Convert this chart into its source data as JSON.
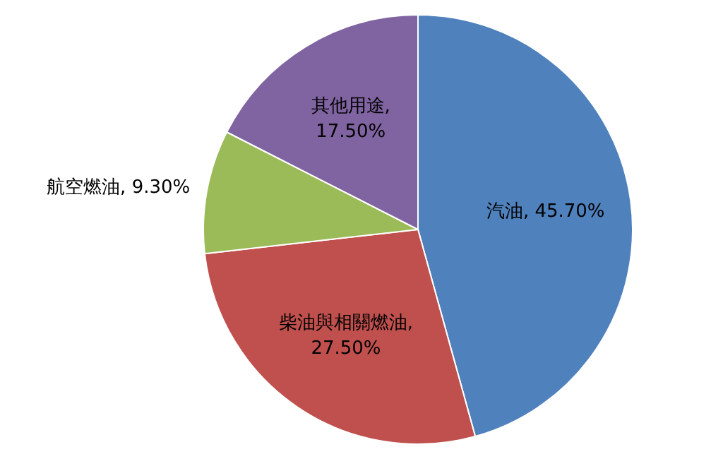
{
  "chart_data": {
    "type": "pie",
    "categories": [
      "汽油",
      "柴油與相關燃油",
      "航空燃油",
      "其他用途"
    ],
    "values": [
      45.7,
      27.5,
      9.3,
      17.5
    ],
    "colors": [
      "#4f81bd",
      "#c0504d",
      "#9bbb59",
      "#8064a2"
    ],
    "value_labels": [
      ", 45.70%",
      ", 27.50%",
      ", 9.30%",
      ", 17.50%"
    ],
    "legend": false
  }
}
